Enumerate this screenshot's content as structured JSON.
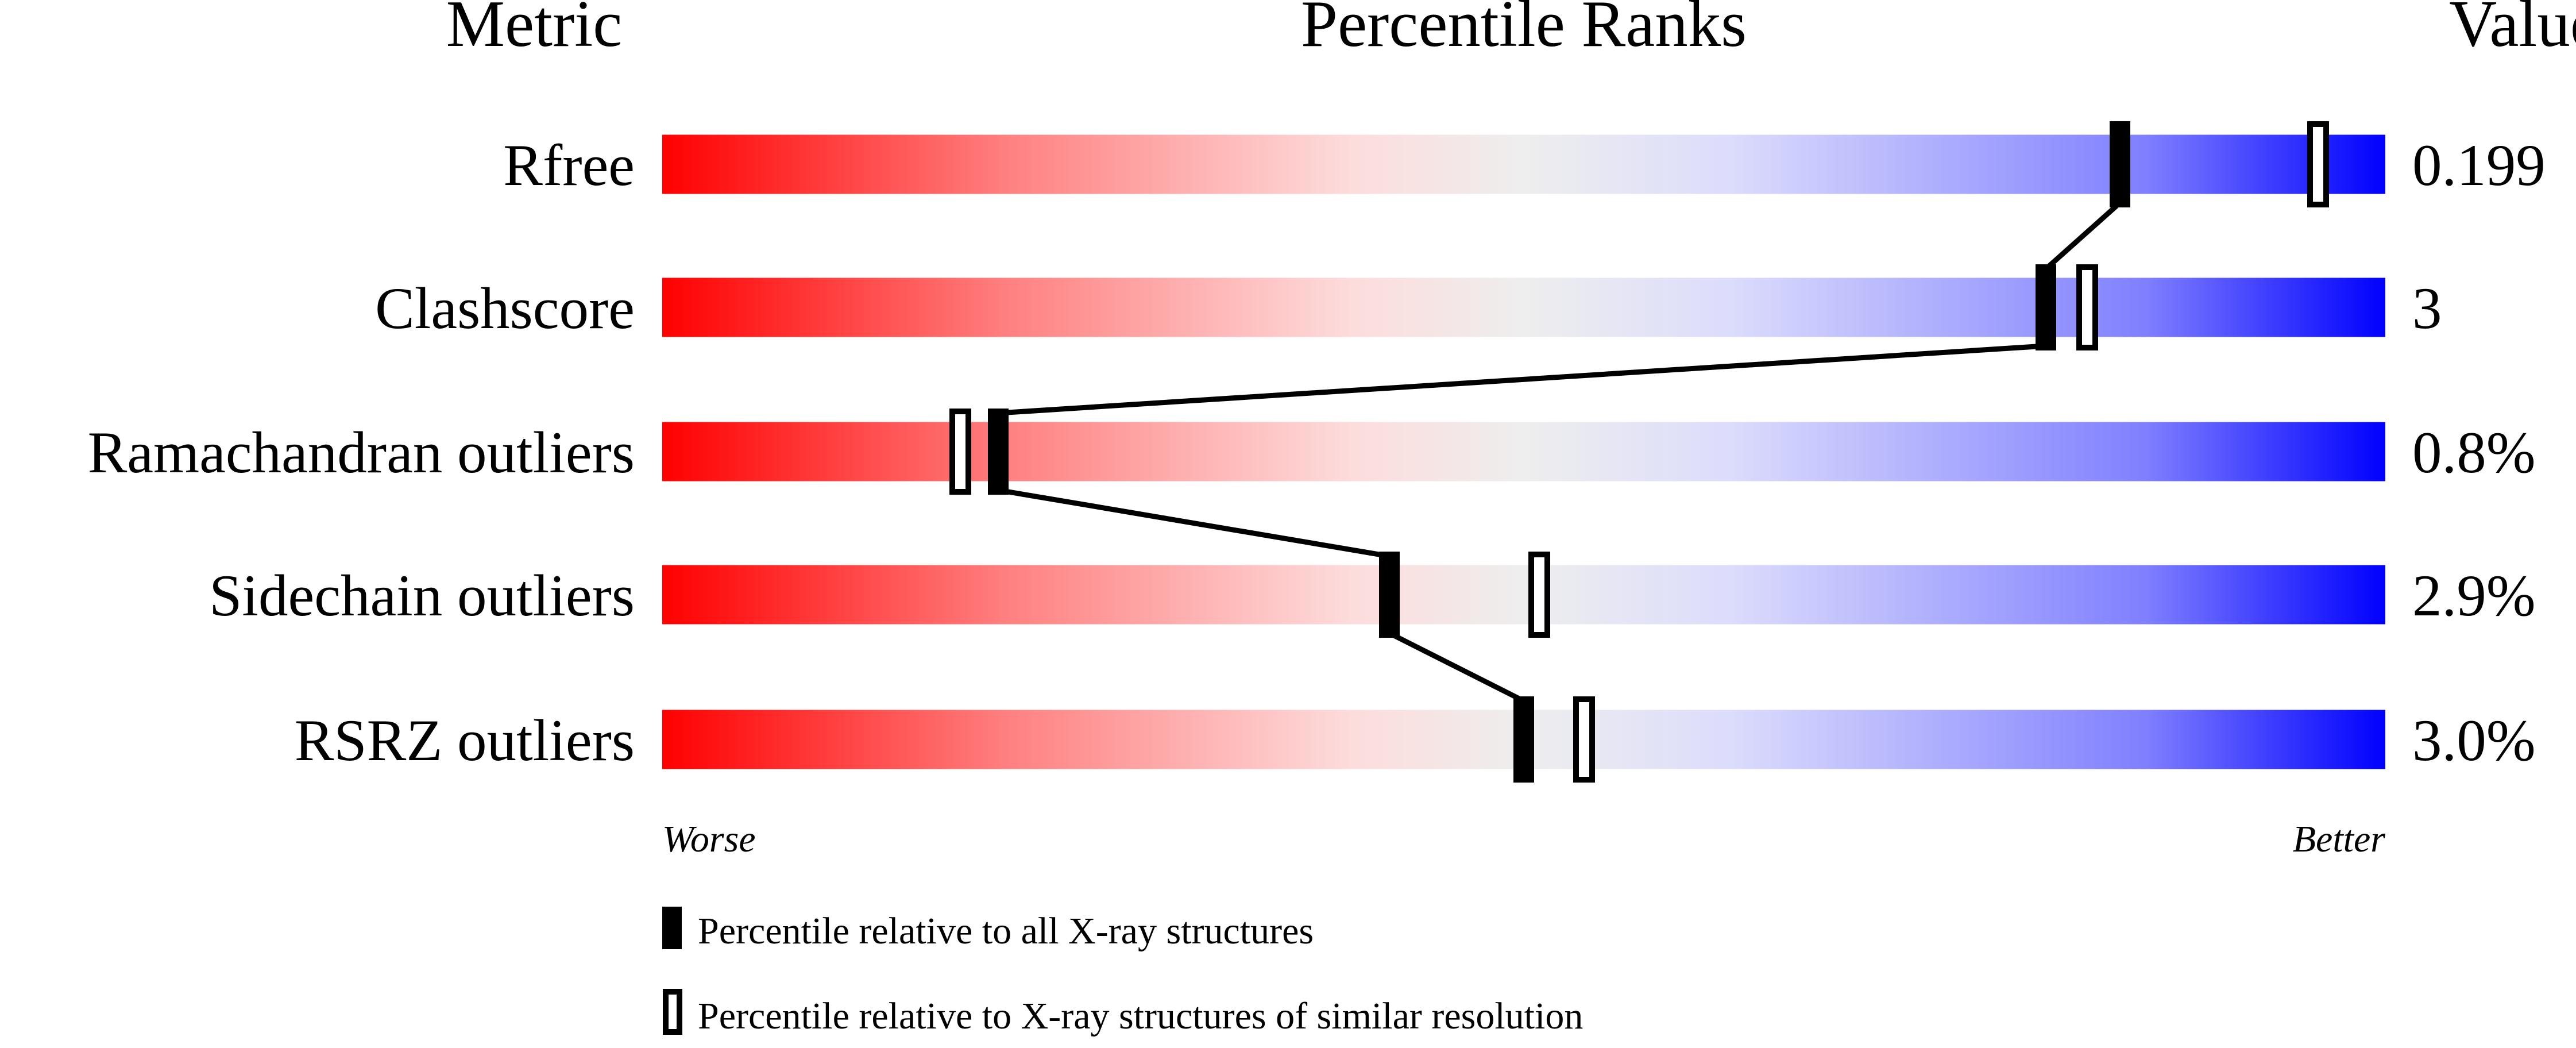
{
  "chart_data": {
    "type": "percentile-bars",
    "headers": {
      "metric": "Metric",
      "ranks": "Percentile Ranks",
      "value": "Value"
    },
    "xlim": [
      0,
      100
    ],
    "axis_labels": {
      "left": "Worse",
      "right": "Better"
    },
    "gradient_colors": [
      "#ff0000",
      "#ff8080",
      "#fddcdc",
      "#eeeeee",
      "#dcdcfc",
      "#8080ff",
      "#0000ff"
    ],
    "metrics": [
      {
        "name": "Rfree",
        "value": "0.199",
        "percentile_all": 84.6,
        "percentile_similar": 96.1
      },
      {
        "name": "Clashscore",
        "value": "3",
        "percentile_all": 80.3,
        "percentile_similar": 82.7
      },
      {
        "name": "Ramachandran outliers",
        "value": "0.8%",
        "percentile_all": 19.5,
        "percentile_similar": 17.3
      },
      {
        "name": "Sidechain outliers",
        "value": "2.9%",
        "percentile_all": 42.2,
        "percentile_similar": 50.9
      },
      {
        "name": "RSRZ outliers",
        "value": "3.0%",
        "percentile_all": 50.0,
        "percentile_similar": 53.5
      }
    ],
    "legend": [
      {
        "marker": "filled",
        "label": "Percentile relative to all X-ray structures"
      },
      {
        "marker": "open",
        "label": "Percentile relative to X-ray structures of similar resolution"
      }
    ]
  }
}
